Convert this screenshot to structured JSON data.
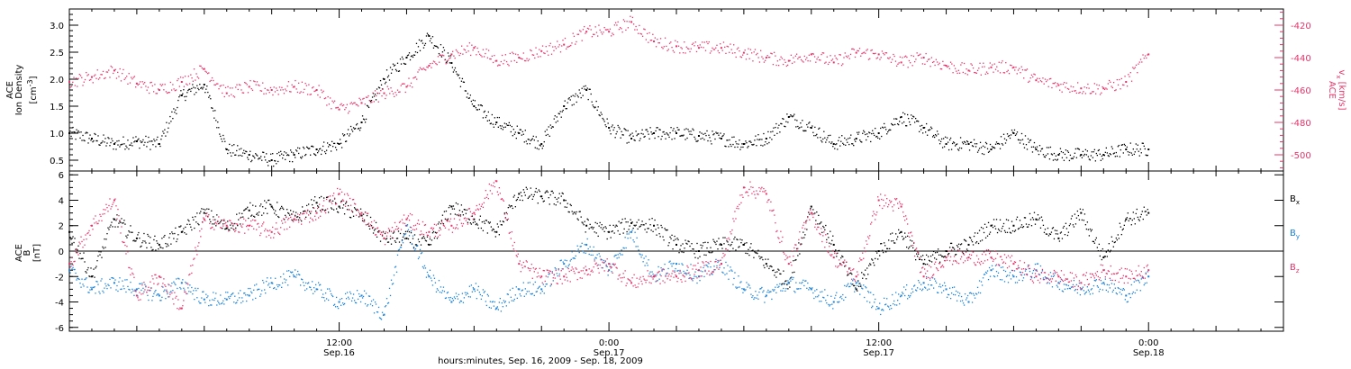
{
  "colors": {
    "black": "#000000",
    "pink": "#e8346a",
    "blue": "#1a82d8"
  },
  "chart_data": [
    {
      "type": "scatter",
      "panel": "top",
      "x_unit": "hours since Sep 16 2009 00:00",
      "xlim": [
        0,
        54
      ],
      "ylabel_left": [
        "ACE",
        "Ion Density",
        "[cm",
        "-3",
        "]"
      ],
      "ylabel_right": [
        "ACE",
        "v",
        "x",
        "[km/s]"
      ],
      "ylim_left": [
        0.3,
        3.3
      ],
      "ylim_right": [
        -510,
        -410
      ],
      "yticks_left": [
        "0.5",
        "1.0",
        "1.5",
        "2.0",
        "2.5",
        "3.0"
      ],
      "yticks_right": [
        "-420",
        "-440",
        "-460",
        "-480",
        "-500"
      ],
      "series": [
        {
          "name": "Ion Density",
          "axis": "left",
          "color": "#000000",
          "x": [
            0,
            1,
            2,
            3,
            4,
            5,
            6,
            7,
            8,
            9,
            10,
            11,
            12,
            13,
            14,
            15,
            16,
            17,
            18,
            19,
            20,
            21,
            22,
            23,
            24,
            25,
            26,
            27,
            28,
            29,
            30,
            31,
            32,
            33,
            34,
            35,
            36,
            37,
            38,
            39,
            40,
            41,
            42,
            43,
            44,
            45,
            46,
            47,
            48
          ],
          "y": [
            1.0,
            0.9,
            0.8,
            0.85,
            0.8,
            1.7,
            1.9,
            0.7,
            0.6,
            0.5,
            0.6,
            0.7,
            0.8,
            1.2,
            2.0,
            2.4,
            2.8,
            2.3,
            1.5,
            1.2,
            1.0,
            0.8,
            1.5,
            1.8,
            1.1,
            0.9,
            1.0,
            1.0,
            0.95,
            0.9,
            0.8,
            0.9,
            1.3,
            1.1,
            0.8,
            0.9,
            1.0,
            1.3,
            1.1,
            0.8,
            0.8,
            0.7,
            1.0,
            0.7,
            0.6,
            0.6,
            0.6,
            0.7,
            0.7
          ]
        },
        {
          "name": "Vx",
          "axis": "right",
          "color": "#e8346a",
          "x": [
            0,
            1,
            2,
            3,
            4,
            5,
            6,
            7,
            8,
            9,
            10,
            11,
            12,
            13,
            14,
            15,
            16,
            17,
            18,
            19,
            20,
            21,
            22,
            23,
            24,
            25,
            26,
            27,
            28,
            29,
            30,
            31,
            32,
            33,
            34,
            35,
            36,
            37,
            38,
            39,
            40,
            41,
            42,
            43,
            44,
            45,
            46,
            47,
            48
          ],
          "y": [
            -455,
            -452,
            -448,
            -456,
            -460,
            -455,
            -447,
            -462,
            -458,
            -460,
            -458,
            -460,
            -472,
            -468,
            -462,
            -458,
            -445,
            -438,
            -434,
            -442,
            -440,
            -436,
            -432,
            -424,
            -424,
            -418,
            -430,
            -433,
            -434,
            -434,
            -437,
            -440,
            -442,
            -438,
            -443,
            -437,
            -438,
            -443,
            -440,
            -445,
            -448,
            -446,
            -446,
            -454,
            -457,
            -459,
            -459,
            -455,
            -438
          ]
        }
      ]
    },
    {
      "type": "scatter",
      "panel": "bottom",
      "x_unit": "hours since Sep 16 2009 00:00",
      "xlim": [
        0,
        54
      ],
      "ylabel": [
        "ACE",
        "B",
        "[nT]"
      ],
      "ylim": [
        -6.3,
        6.3
      ],
      "yticks": [
        "6",
        "4",
        "2",
        "0",
        "-2",
        "-4",
        "-6"
      ],
      "legend": [
        "B",
        "x",
        "B",
        "y",
        "B",
        "z"
      ],
      "series": [
        {
          "name": "Bx",
          "color": "#000000",
          "x": [
            0,
            1,
            2,
            3,
            4,
            5,
            6,
            7,
            8,
            9,
            10,
            11,
            12,
            13,
            14,
            15,
            16,
            17,
            18,
            19,
            20,
            21,
            22,
            23,
            24,
            25,
            26,
            27,
            28,
            29,
            30,
            31,
            32,
            33,
            34,
            35,
            36,
            37,
            38,
            39,
            40,
            41,
            42,
            43,
            44,
            45,
            46,
            47,
            48
          ],
          "y": [
            1.5,
            -2.0,
            2.5,
            1.0,
            0.5,
            1.5,
            3.0,
            1.8,
            3.2,
            3.5,
            2.5,
            3.8,
            3.5,
            2.8,
            1.0,
            1.0,
            0.5,
            3.5,
            2.5,
            1.5,
            4.5,
            4.3,
            4.0,
            2.0,
            1.5,
            2.2,
            2.0,
            0.5,
            0.0,
            0.5,
            0.5,
            -1.0,
            -2.5,
            3.5,
            0.5,
            -3.0,
            0.0,
            1.5,
            -1.0,
            0.0,
            0.5,
            2.0,
            2.0,
            2.5,
            1.0,
            3.0,
            -0.5,
            2.5,
            3.0
          ]
        },
        {
          "name": "By",
          "color": "#1a82d8",
          "x": [
            0,
            1,
            2,
            3,
            4,
            5,
            6,
            7,
            8,
            9,
            10,
            11,
            12,
            13,
            14,
            15,
            16,
            17,
            18,
            19,
            20,
            21,
            22,
            23,
            24,
            25,
            26,
            27,
            28,
            29,
            30,
            31,
            32,
            33,
            34,
            35,
            36,
            37,
            38,
            39,
            40,
            41,
            42,
            43,
            44,
            45,
            46,
            47,
            48
          ],
          "y": [
            -1.5,
            -3.0,
            -2.5,
            -3.0,
            -3.5,
            -2.5,
            -3.8,
            -3.8,
            -3.5,
            -2.5,
            -2.0,
            -3.0,
            -4.0,
            -3.5,
            -5.0,
            2.0,
            -2.0,
            -4.0,
            -3.0,
            -4.5,
            -3.0,
            -3.0,
            -1.0,
            0.5,
            -1.5,
            1.5,
            -2.0,
            -1.0,
            -2.0,
            -1.0,
            -3.0,
            -3.5,
            -2.5,
            -3.0,
            -4.0,
            -2.5,
            -4.5,
            -3.5,
            -2.5,
            -3.0,
            -4.0,
            -1.5,
            -2.0,
            -1.5,
            -2.5,
            -3.0,
            -2.5,
            -3.5,
            -2.0
          ]
        },
        {
          "name": "Bz",
          "color": "#e8346a",
          "x": [
            0,
            1,
            2,
            3,
            4,
            5,
            6,
            7,
            8,
            9,
            10,
            11,
            12,
            13,
            14,
            15,
            16,
            17,
            18,
            19,
            20,
            21,
            22,
            23,
            24,
            25,
            26,
            27,
            28,
            29,
            30,
            31,
            32,
            33,
            34,
            35,
            36,
            37,
            38,
            39,
            40,
            41,
            42,
            43,
            44,
            45,
            46,
            47,
            48
          ],
          "y": [
            -1.0,
            2.0,
            4.0,
            -3.5,
            -2.0,
            -4.5,
            2.5,
            2.0,
            2.0,
            1.5,
            2.5,
            3.0,
            4.5,
            3.0,
            1.0,
            2.5,
            1.5,
            2.0,
            3.0,
            5.5,
            -1.0,
            -2.0,
            -2.0,
            -1.5,
            -1.0,
            -2.5,
            -2.0,
            -2.0,
            -1.5,
            -1.0,
            5.0,
            4.5,
            -1.0,
            3.0,
            -0.5,
            -2.0,
            4.0,
            3.5,
            -2.0,
            -0.5,
            -0.5,
            -0.5,
            -1.0,
            -2.0,
            -2.0,
            -2.5,
            -1.5,
            -2.0,
            -1.5
          ]
        }
      ]
    }
  ],
  "x_axis": {
    "ticks": [
      {
        "t": 12,
        "time": "12:00",
        "date": "Sep.16"
      },
      {
        "t": 24,
        "time": "0:00",
        "date": "Sep.17"
      },
      {
        "t": 36,
        "time": "12:00",
        "date": "Sep.17"
      },
      {
        "t": 48,
        "time": "0:00",
        "date": "Sep.18"
      }
    ],
    "caption": "hours:minutes, Sep. 16, 2009 - Sep. 18, 2009"
  }
}
